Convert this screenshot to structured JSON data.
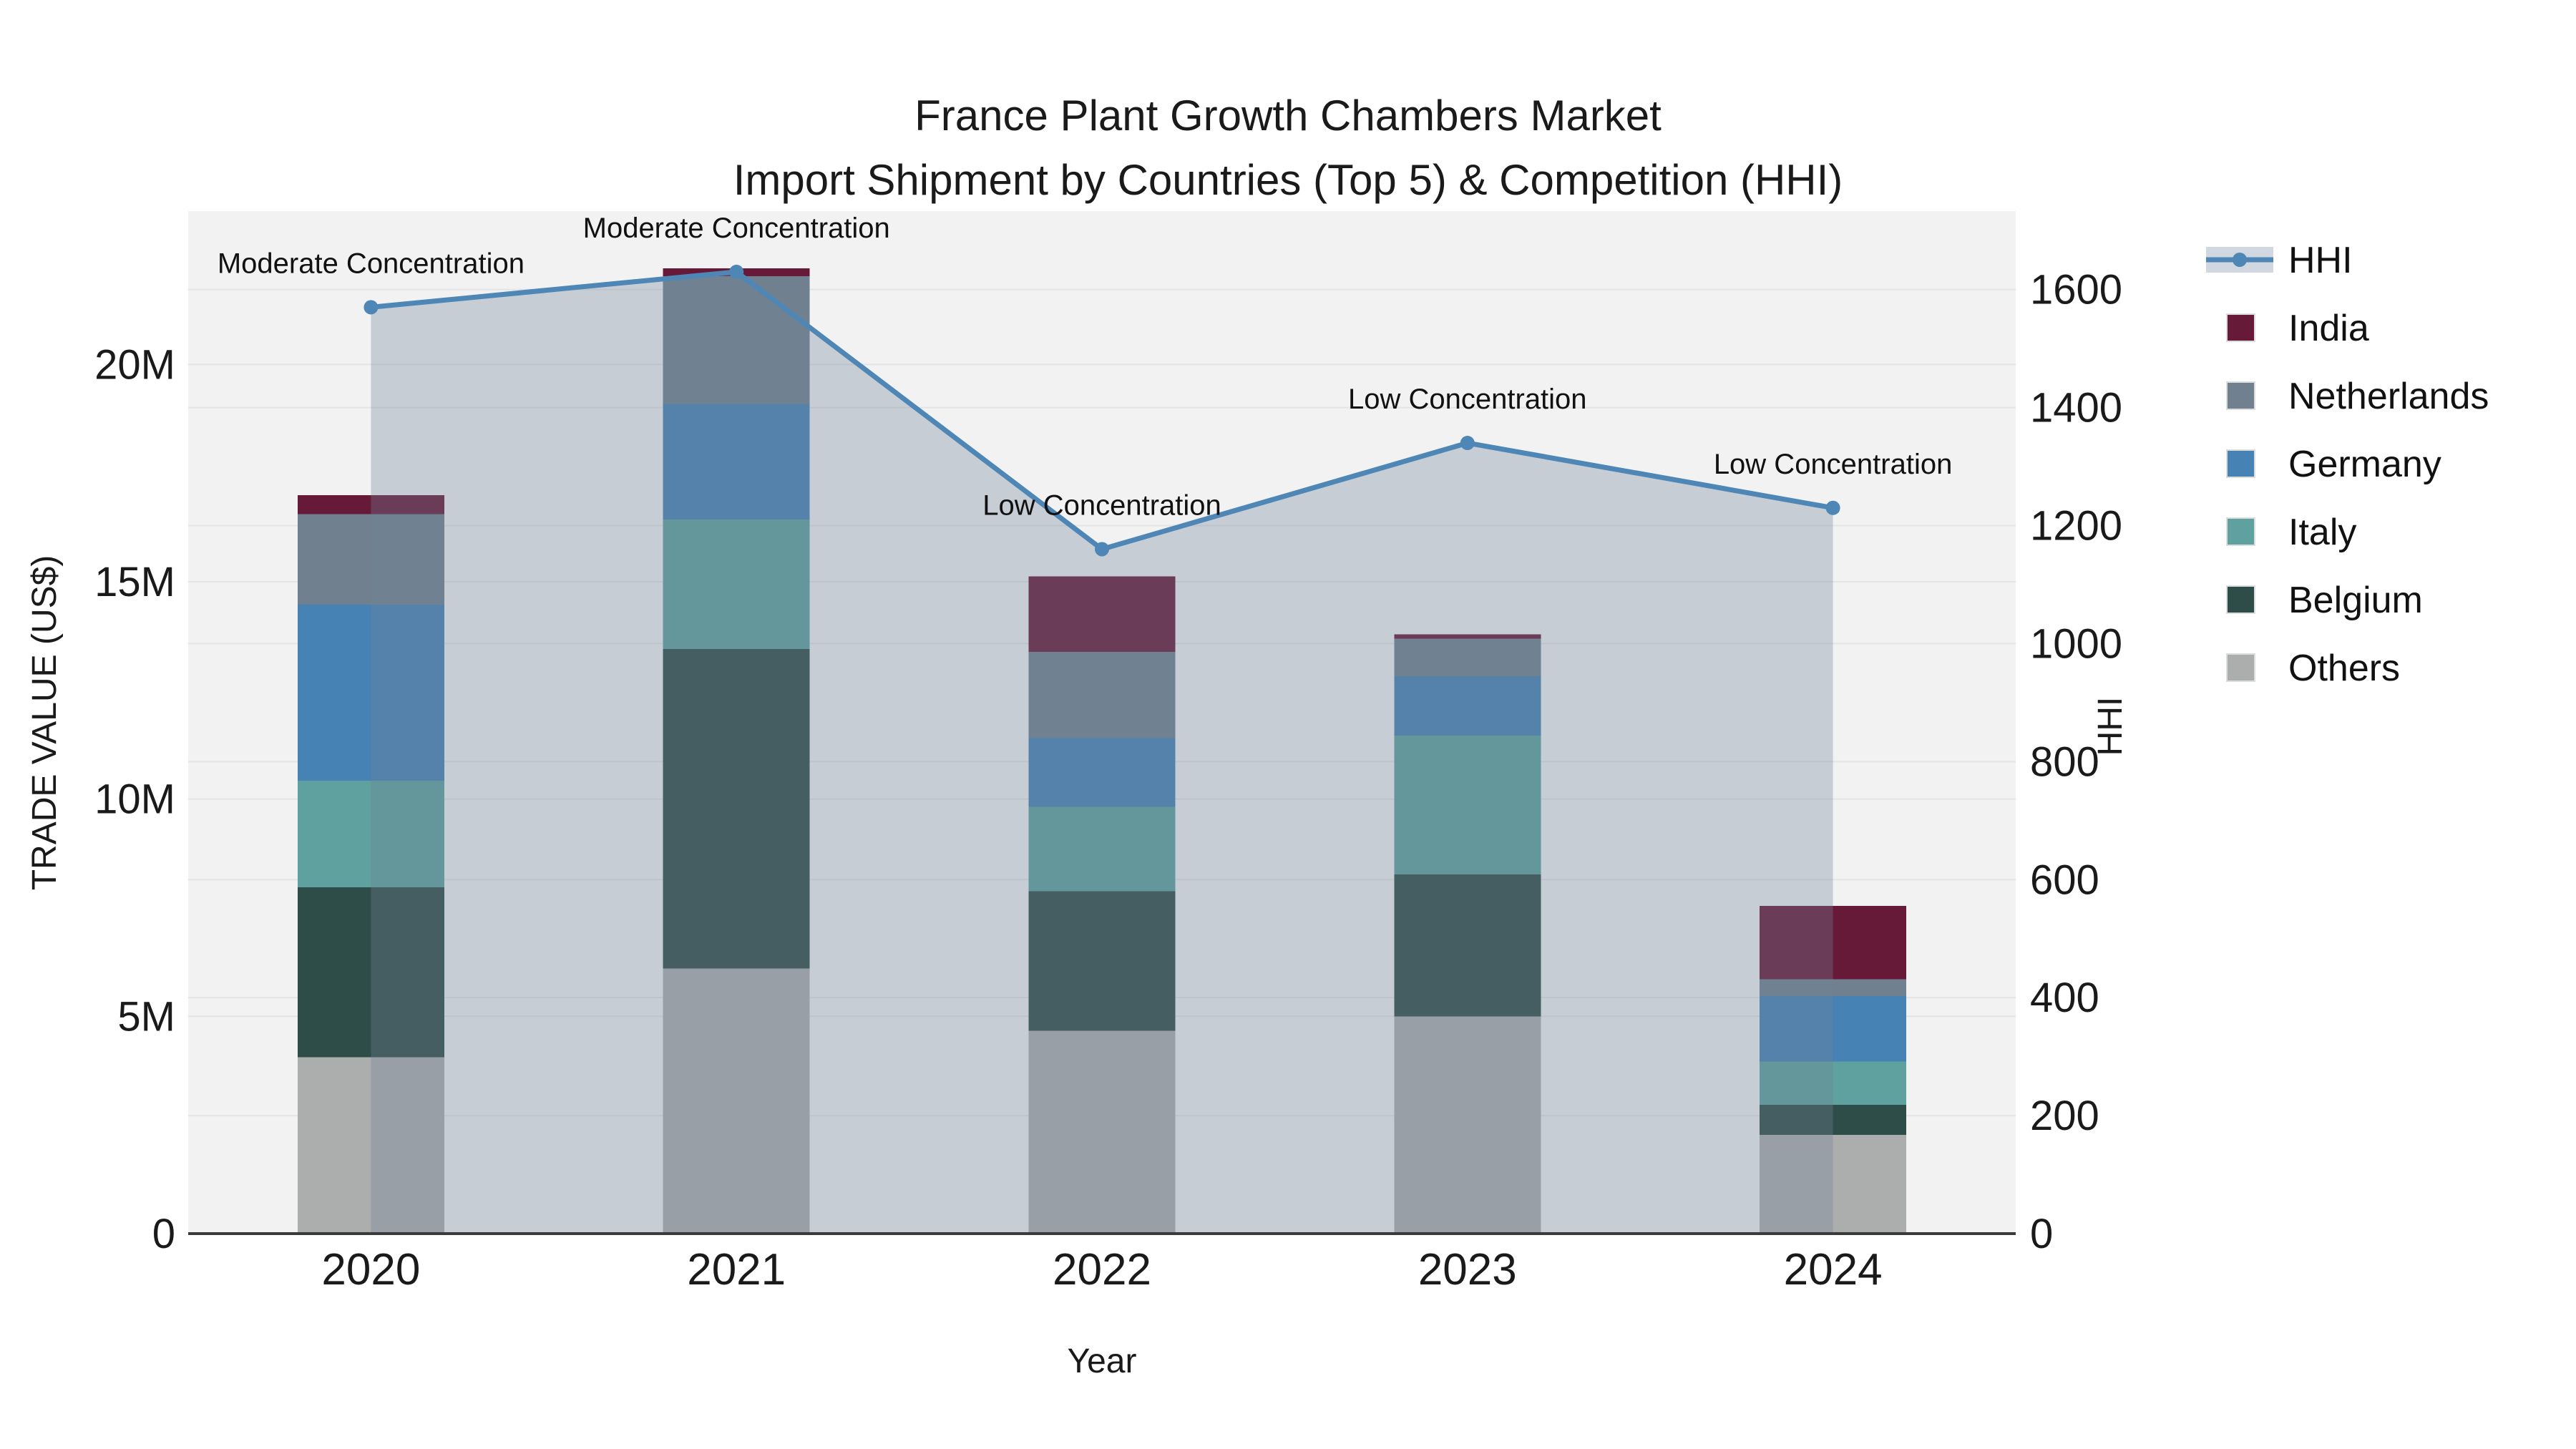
{
  "title": {
    "line1": "France Plant Growth Chambers Market",
    "line2": "Import Shipment by Countries (Top 5) & Competition (HHI)"
  },
  "axes": {
    "x": {
      "title": "Year",
      "categories": [
        "2020",
        "2021",
        "2022",
        "2023",
        "2024"
      ]
    },
    "y_left": {
      "title": "TRADE VALUE (US$)",
      "tick_labels": [
        "0",
        "5M",
        "10M",
        "15M",
        "20M"
      ],
      "tick_values_musd": [
        0,
        5,
        10,
        15,
        20
      ]
    },
    "y_right": {
      "title": "HHI",
      "tick_values": [
        0,
        200,
        400,
        600,
        800,
        1000,
        1200,
        1400,
        1600
      ]
    }
  },
  "legend": {
    "position": "right",
    "items": [
      {
        "label": "HHI",
        "type": "line",
        "color": "#4e86b5"
      },
      {
        "label": "India",
        "type": "swatch",
        "color": "#671a38"
      },
      {
        "label": "Netherlands",
        "type": "swatch",
        "color": "#70808f"
      },
      {
        "label": "Germany",
        "type": "swatch",
        "color": "#4682b4"
      },
      {
        "label": "Italy",
        "type": "swatch",
        "color": "#5fa19e"
      },
      {
        "label": "Belgium",
        "type": "swatch",
        "color": "#2f4d48"
      },
      {
        "label": "Others",
        "type": "swatch",
        "color": "#acaead"
      }
    ]
  },
  "colors": {
    "plot_background": "#f2f2f2",
    "gridline": "#e3e4e6",
    "axis_line": "#3b3b3b",
    "text": "#1a1a1a",
    "hhi_line": "#4e86b5",
    "hhi_area_fill": "rgba(113,131,153,0.33)",
    "legend_hhi_band": "#d0d7e0"
  },
  "chart_data": {
    "type": "bar+line",
    "categories": [
      "2020",
      "2021",
      "2022",
      "2023",
      "2024"
    ],
    "bar_unit": "million US$",
    "bar_series_bottom_to_top": [
      {
        "name": "Others",
        "color": "#acaead",
        "values_musd": [
          4.06,
          6.1,
          4.67,
          5.0,
          2.27
        ]
      },
      {
        "name": "Belgium",
        "color": "#2f4d48",
        "values_musd": [
          3.91,
          7.35,
          3.21,
          3.27,
          0.69
        ]
      },
      {
        "name": "Italy",
        "color": "#5fa19e",
        "values_musd": [
          2.45,
          2.98,
          1.94,
          3.19,
          1.0
        ]
      },
      {
        "name": "Germany",
        "color": "#4682b4",
        "values_musd": [
          4.05,
          2.66,
          1.58,
          1.37,
          1.51
        ]
      },
      {
        "name": "Netherlands",
        "color": "#70808f",
        "values_musd": [
          2.09,
          2.94,
          1.99,
          0.86,
          0.38
        ]
      },
      {
        "name": "India",
        "color": "#671a38",
        "values_musd": [
          0.43,
          0.18,
          1.73,
          0.1,
          1.69
        ]
      }
    ],
    "bar_totals_musd": [
      16.99,
      22.21,
      15.12,
      13.79,
      7.54
    ],
    "line_series": {
      "name": "HHI",
      "values": [
        1570,
        1630,
        1160,
        1340,
        1230
      ]
    },
    "annotations": [
      {
        "category": "2020",
        "label": "Moderate Concentration"
      },
      {
        "category": "2021",
        "label": "Moderate Concentration"
      },
      {
        "category": "2022",
        "label": "Low Concentration"
      },
      {
        "category": "2023",
        "label": "Low Concentration"
      },
      {
        "category": "2024",
        "label": "Low Concentration"
      }
    ],
    "ylim_left_musd": [
      0,
      23.53
    ],
    "ylim_right": [
      0,
      1733
    ],
    "grid": true,
    "legend_position": "right"
  }
}
